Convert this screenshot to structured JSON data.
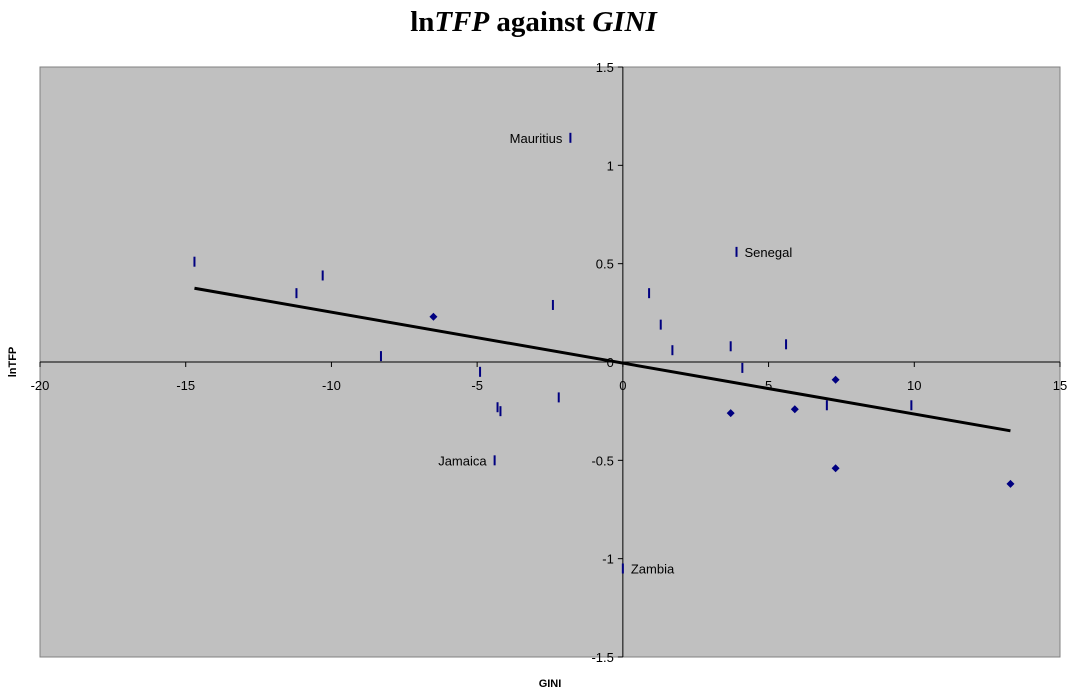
{
  "chart_data": {
    "type": "scatter",
    "title_prefix": "ln",
    "title_tfp": "TFP",
    "title_mid": " against ",
    "title_gini": "GINI",
    "xlabel": "GINI",
    "ylabel": "lnTFP",
    "xlim": [
      -20,
      15
    ],
    "ylim": [
      -1.5,
      1.5
    ],
    "x_ticks": [
      -20,
      -15,
      -10,
      -5,
      0,
      5,
      10,
      15
    ],
    "y_ticks": [
      -1.5,
      -1,
      -0.5,
      0,
      0.5,
      1,
      1.5
    ],
    "grid": false,
    "plot_background": "#c0c0c0",
    "marker_color": "#000080",
    "trendline": {
      "from": [
        -14.7,
        0.375
      ],
      "to": [
        13.3,
        -0.35
      ],
      "color": "#000000"
    },
    "points": [
      {
        "x": -14.7,
        "y": 0.51,
        "marker": "dash"
      },
      {
        "x": -11.2,
        "y": 0.35,
        "marker": "dash"
      },
      {
        "x": -10.3,
        "y": 0.44,
        "marker": "dash"
      },
      {
        "x": -8.3,
        "y": 0.03,
        "marker": "dash"
      },
      {
        "x": -6.5,
        "y": 0.23,
        "marker": "diamond"
      },
      {
        "x": -4.9,
        "y": -0.05,
        "marker": "dash"
      },
      {
        "x": -4.4,
        "y": -0.5,
        "marker": "dash",
        "label": "Jamaica"
      },
      {
        "x": -4.3,
        "y": -0.23,
        "marker": "dash"
      },
      {
        "x": -4.2,
        "y": -0.25,
        "marker": "dash"
      },
      {
        "x": -2.4,
        "y": 0.29,
        "marker": "dash"
      },
      {
        "x": -2.2,
        "y": -0.18,
        "marker": "dash"
      },
      {
        "x": -1.8,
        "y": 1.14,
        "marker": "dash",
        "label": "Mauritius"
      },
      {
        "x": 0.0,
        "y": -1.05,
        "marker": "dash",
        "label": "Zambia"
      },
      {
        "x": 0.9,
        "y": 0.35,
        "marker": "dash"
      },
      {
        "x": 1.3,
        "y": 0.19,
        "marker": "dash"
      },
      {
        "x": 1.7,
        "y": 0.06,
        "marker": "dash"
      },
      {
        "x": 3.7,
        "y": 0.08,
        "marker": "dash"
      },
      {
        "x": 3.7,
        "y": -0.26,
        "marker": "diamond"
      },
      {
        "x": 3.9,
        "y": 0.56,
        "marker": "dash",
        "label": "Senegal"
      },
      {
        "x": 4.1,
        "y": -0.03,
        "marker": "dash"
      },
      {
        "x": 5.6,
        "y": 0.09,
        "marker": "dash"
      },
      {
        "x": 5.9,
        "y": -0.24,
        "marker": "diamond"
      },
      {
        "x": 7.0,
        "y": -0.22,
        "marker": "dash"
      },
      {
        "x": 7.3,
        "y": -0.09,
        "marker": "diamond"
      },
      {
        "x": 7.3,
        "y": -0.54,
        "marker": "diamond"
      },
      {
        "x": 9.9,
        "y": -0.22,
        "marker": "dash"
      },
      {
        "x": 13.3,
        "y": -0.62,
        "marker": "diamond"
      }
    ]
  }
}
